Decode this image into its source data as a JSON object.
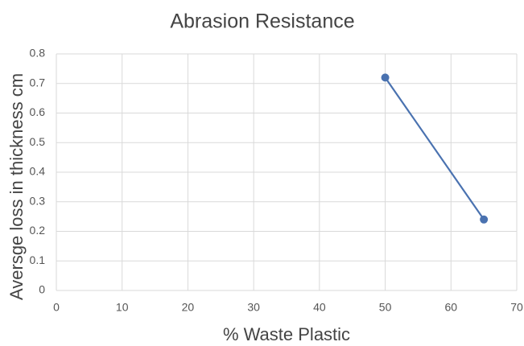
{
  "chart_data": {
    "type": "line",
    "title": "Abrasion Resistance",
    "x_label": "% Waste Plastic",
    "y_label": "Aversge loss in thickness cm",
    "x": [
      50,
      65
    ],
    "values": [
      0.72,
      0.24
    ],
    "color": "#4a72b0",
    "xlim": [
      0,
      70
    ],
    "xticks": [
      0,
      10,
      20,
      30,
      40,
      50,
      60,
      70
    ],
    "ylim": [
      0,
      0.8
    ],
    "yticks": [
      0,
      0.1,
      0.2,
      0.3,
      0.4,
      0.5,
      0.6,
      0.7,
      0.8
    ],
    "grid": true
  }
}
